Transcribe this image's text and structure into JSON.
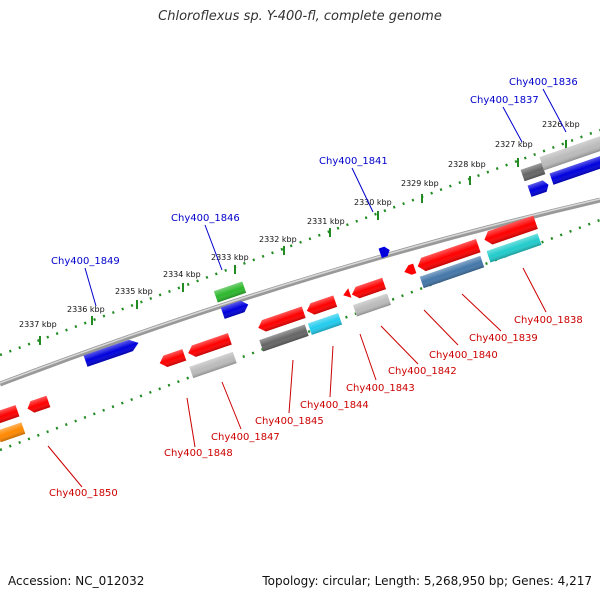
{
  "title": "Chloroflexus sp. Y-400-fl, complete genome",
  "footer": {
    "accession": "Accession: NC_012032",
    "summary": "Topology: circular; Length: 5,268,950 bp; Genes: 4,217"
  },
  "colors": {
    "forward_label": "#0000cc",
    "reverse_label": "#cc0000",
    "tick": "#228b22",
    "backbone": "#888888"
  },
  "kbp_ticks": [
    "2337 kbp",
    "2336 kbp",
    "2335 kbp",
    "2334 kbp",
    "2333 kbp",
    "2332 kbp",
    "2331 kbp",
    "2330 kbp",
    "2329 kbp",
    "2328 kbp",
    "2327 kbp",
    "2326 kbp"
  ],
  "forward_genes": [
    {
      "id": "fwd-1849",
      "label": "Chy400_1849",
      "color": "#0000dd"
    },
    {
      "id": "fwd-1846",
      "label": "Chy400_1846",
      "color": "#2db82d"
    },
    {
      "id": "fwd-1846b",
      "label": "",
      "color": "#0000dd"
    },
    {
      "id": "fwd-1841",
      "label": "Chy400_1841",
      "color": "#0000dd"
    },
    {
      "id": "fwd-1837",
      "label": "Chy400_1837",
      "color": "#0000dd"
    },
    {
      "id": "fwd-1836",
      "label": "Chy400_1836",
      "color": "#0000dd"
    },
    {
      "id": "fwd-grey1",
      "label": "",
      "color": "#666666"
    },
    {
      "id": "fwd-grey2",
      "label": "",
      "color": "#bbbbbb"
    }
  ],
  "reverse_genes": [
    {
      "id": "rev-1850",
      "label": "Chy400_1850",
      "color": "#ff8800"
    },
    {
      "id": "rev-1848",
      "label": "Chy400_1848",
      "color": "#ff0000"
    },
    {
      "id": "rev-1847",
      "label": "Chy400_1847",
      "color": "#bbbbbb"
    },
    {
      "id": "rev-1845",
      "label": "Chy400_1845",
      "color": "#666666"
    },
    {
      "id": "rev-1844",
      "label": "Chy400_1844",
      "color": "#22ccee"
    },
    {
      "id": "rev-1843",
      "label": "Chy400_1843",
      "color": "#bbbbbb"
    },
    {
      "id": "rev-1842",
      "label": "Chy400_1842",
      "color": "#ff0000"
    },
    {
      "id": "rev-1840",
      "label": "Chy400_1840",
      "color": "#4477aa"
    },
    {
      "id": "rev-1839",
      "label": "Chy400_1839",
      "color": "#22cccc"
    },
    {
      "id": "rev-1838",
      "label": "Chy400_1838",
      "color": "#ff0000"
    }
  ]
}
